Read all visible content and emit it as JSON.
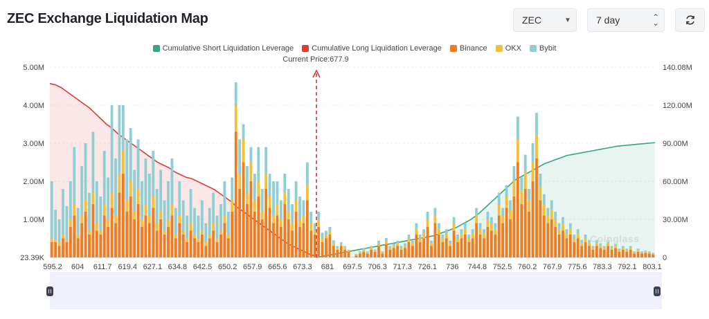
{
  "title": "ZEC Exchange Liquidation Map",
  "controls": {
    "symbol": "ZEC",
    "period": "7 day",
    "symbol_caret_icon": "chevron-down-icon",
    "period_caret_icon": "updown-chevron-icon",
    "refresh_icon": "refresh-icon"
  },
  "legend": [
    {
      "label": "Cumulative Short Liquidation Leverage",
      "color": "#3aa37f"
    },
    {
      "label": "Cumulative Long Liquidation Leverage",
      "color": "#de3b3b"
    },
    {
      "label": "Binance",
      "color": "#ee7d22"
    },
    {
      "label": "OKX",
      "color": "#f4c03a"
    },
    {
      "label": "Bybit",
      "color": "#8fcfd3"
    }
  ],
  "current_price_label": "Current Price:677.9",
  "watermark": "Coinglass",
  "chart_data": {
    "type": "bar",
    "current_price": 677.9,
    "x_tick_labels": [
      "595.2",
      "604",
      "611.7",
      "619.4",
      "627.1",
      "634.8",
      "642.5",
      "650.2",
      "657.9",
      "665.6",
      "673.3",
      "681",
      "697.5",
      "706.3",
      "717.3",
      "726.1",
      "736",
      "744.8",
      "752.5",
      "760.2",
      "767.9",
      "775.6",
      "783.3",
      "792.1",
      "803.1"
    ],
    "y_left": {
      "ticks": [
        "23.39K",
        "1.00M",
        "2.00M",
        "3.00M",
        "4.00M",
        "5.00M"
      ],
      "range": [
        0,
        5000000
      ]
    },
    "y_right": {
      "ticks": [
        "0",
        "30.00M",
        "60.00M",
        "90.00M",
        "120.00M",
        "140.08M"
      ],
      "range": [
        0,
        140080000
      ]
    },
    "bars": {
      "binance": [
        0.4,
        0.4,
        0.3,
        0.5,
        0.4,
        0.8,
        1.1,
        0.5,
        0.9,
        1.2,
        0.6,
        1.4,
        0.7,
        0.6,
        1.1,
        0.8,
        1.3,
        0.9,
        1.7,
        2.2,
        1.2,
        1.6,
        1.0,
        1.4,
        0.8,
        1.1,
        0.9,
        1.3,
        0.7,
        1.0,
        0.6,
        0.8,
        1.1,
        0.5,
        0.9,
        0.6,
        0.4,
        0.7,
        0.5,
        0.4,
        0.6,
        0.3,
        0.5,
        0.7,
        0.4,
        0.6,
        0.9,
        0.5,
        1.2,
        3.3,
        1.8,
        2.5,
        1.4,
        2.0,
        1.2,
        1.6,
        1.0,
        1.8,
        1.3,
        0.9,
        1.1,
        0.8,
        1.4,
        1.0,
        0.7,
        1.2,
        0.8,
        0.9,
        1.5,
        0.7,
        0.6,
        0.8,
        0.4,
        0.5,
        0.6,
        0.3,
        0.2,
        0.3,
        0.2,
        0.15,
        0.0,
        0.05,
        0.1,
        0.15,
        0.1,
        0.2,
        0.15,
        0.3,
        0.1,
        0.35,
        0.2,
        0.25,
        0.3,
        0.2,
        0.25,
        0.4,
        0.3,
        0.6,
        0.4,
        0.5,
        0.8,
        0.3,
        0.9,
        0.6,
        0.4,
        0.5,
        0.3,
        0.7,
        0.4,
        0.5,
        0.6,
        0.4,
        0.5,
        0.9,
        0.6,
        0.5,
        0.8,
        0.7,
        0.6,
        1.1,
        0.9,
        1.3,
        1.0,
        1.6,
        2.5,
        1.4,
        1.8,
        1.2,
        2.0,
        2.6,
        1.5,
        1.1,
        0.9,
        1.0,
        0.8,
        0.6,
        0.7,
        0.5,
        0.6,
        0.4,
        0.5,
        0.3,
        0.4,
        0.3,
        0.2,
        0.3,
        0.25,
        0.2,
        0.3,
        0.2,
        0.25,
        0.15,
        0.2,
        0.15,
        0.2,
        0.1,
        0.15,
        0.1,
        0.12,
        0.1,
        0.08
      ],
      "okx": [
        0.1,
        0.05,
        0.1,
        0.1,
        0.05,
        0.2,
        0.3,
        0.1,
        0.2,
        0.3,
        0.1,
        0.3,
        0.2,
        0.1,
        0.3,
        0.2,
        0.4,
        0.2,
        0.5,
        0.6,
        0.3,
        0.4,
        0.2,
        0.4,
        0.2,
        0.3,
        0.2,
        0.3,
        0.2,
        0.2,
        0.1,
        0.2,
        0.3,
        0.1,
        0.2,
        0.1,
        0.1,
        0.2,
        0.1,
        0.1,
        0.1,
        0.1,
        0.1,
        0.2,
        0.1,
        0.1,
        0.2,
        0.1,
        0.3,
        0.7,
        0.4,
        0.6,
        0.3,
        0.5,
        0.3,
        0.4,
        0.2,
        0.4,
        0.3,
        0.2,
        0.3,
        0.2,
        0.3,
        0.2,
        0.2,
        0.3,
        0.2,
        0.2,
        0.4,
        0.2,
        0.1,
        0.2,
        0.1,
        0.1,
        0.1,
        0.05,
        0.05,
        0.05,
        0.05,
        0.03,
        0.0,
        0.02,
        0.03,
        0.05,
        0.03,
        0.05,
        0.03,
        0.07,
        0.03,
        0.08,
        0.05,
        0.06,
        0.07,
        0.05,
        0.06,
        0.1,
        0.07,
        0.15,
        0.1,
        0.12,
        0.2,
        0.07,
        0.2,
        0.15,
        0.1,
        0.12,
        0.07,
        0.18,
        0.1,
        0.12,
        0.15,
        0.1,
        0.12,
        0.2,
        0.15,
        0.12,
        0.2,
        0.18,
        0.15,
        0.3,
        0.2,
        0.3,
        0.25,
        0.4,
        0.6,
        0.35,
        0.45,
        0.3,
        0.5,
        0.6,
        0.35,
        0.28,
        0.2,
        0.25,
        0.2,
        0.15,
        0.18,
        0.12,
        0.15,
        0.1,
        0.12,
        0.08,
        0.1,
        0.08,
        0.05,
        0.08,
        0.06,
        0.05,
        0.08,
        0.05,
        0.06,
        0.04,
        0.05,
        0.04,
        0.05,
        0.03,
        0.04,
        0.03,
        0.03,
        0.03,
        0.02
      ],
      "bybit": [
        1.5,
        0.8,
        0.6,
        1.2,
        0.9,
        1.0,
        1.5,
        0.7,
        1.3,
        1.5,
        1.0,
        1.6,
        1.1,
        0.9,
        1.4,
        1.1,
        2.3,
        1.5,
        1.8,
        1.2,
        1.6,
        1.4,
        1.1,
        1.3,
        1.0,
        1.2,
        1.1,
        1.2,
        0.9,
        1.1,
        0.8,
        1.0,
        1.2,
        0.7,
        0.9,
        0.8,
        0.6,
        0.9,
        0.7,
        0.6,
        0.8,
        0.5,
        0.7,
        0.8,
        0.6,
        0.7,
        0.9,
        0.6,
        0.6,
        0.6,
        0.9,
        0.4,
        0.7,
        0.4,
        0.7,
        0.9,
        0.6,
        0.7,
        0.6,
        0.9,
        0.6,
        0.5,
        0.5,
        0.6,
        0.5,
        0.5,
        0.6,
        0.4,
        0.6,
        0.3,
        0.2,
        0.2,
        0.15,
        0.1,
        0.1,
        0.1,
        0.05,
        0.05,
        0.05,
        0.02,
        0.0,
        0.02,
        0.03,
        0.05,
        0.03,
        0.05,
        0.03,
        0.07,
        0.03,
        0.08,
        0.05,
        0.06,
        0.07,
        0.05,
        0.06,
        0.1,
        0.07,
        0.15,
        0.1,
        0.12,
        0.2,
        0.07,
        0.2,
        0.15,
        0.1,
        0.12,
        0.07,
        0.18,
        0.1,
        0.12,
        0.15,
        0.1,
        0.12,
        0.2,
        0.15,
        0.12,
        0.2,
        0.18,
        0.15,
        0.3,
        0.2,
        0.3,
        0.25,
        0.4,
        0.6,
        0.35,
        0.45,
        0.3,
        0.5,
        0.6,
        0.35,
        0.28,
        0.2,
        0.25,
        0.2,
        0.15,
        0.18,
        0.12,
        0.15,
        0.1,
        0.12,
        0.08,
        0.1,
        0.08,
        0.05,
        0.08,
        0.06,
        0.05,
        0.08,
        0.05,
        0.06,
        0.04,
        0.05,
        0.04,
        0.05,
        0.03,
        0.04,
        0.03,
        0.03,
        0.03,
        0.02
      ]
    },
    "cumulative_long": [
      128,
      127,
      125,
      122,
      119,
      116,
      113,
      110,
      106,
      102,
      98,
      95,
      91,
      88,
      85,
      82,
      79,
      76,
      73,
      70,
      68,
      66,
      63,
      61,
      59,
      58,
      56,
      54,
      52,
      50,
      47,
      44,
      41,
      37,
      34,
      31,
      28,
      25,
      22,
      19,
      16,
      13,
      10,
      8,
      6,
      4,
      2,
      1
    ],
    "cumulative_short": [
      0,
      1,
      2,
      3,
      4,
      5,
      6,
      7,
      8,
      9,
      10,
      11,
      12,
      13,
      14,
      15,
      16,
      18,
      20,
      22,
      25,
      28,
      32,
      37,
      42,
      47,
      52,
      57,
      60,
      63,
      66,
      69,
      71,
      73,
      75,
      76,
      77,
      78,
      79,
      80,
      81,
      82,
      82.5,
      83,
      83.5,
      84,
      84.5
    ]
  }
}
